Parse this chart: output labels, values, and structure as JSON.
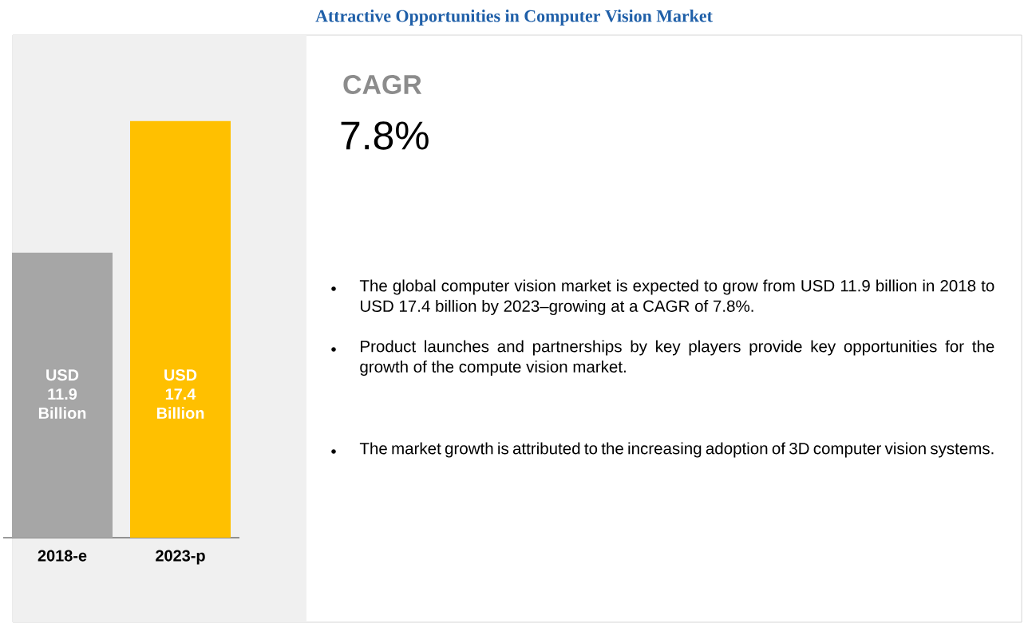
{
  "chart_data": {
    "type": "bar",
    "title": "Attractive Opportunities in Computer Vision Market",
    "categories": [
      "2018-e",
      "2023-p"
    ],
    "values": [
      11.9,
      17.4
    ],
    "colors": [
      "#a6a6a6",
      "#ffc000"
    ],
    "value_labels": [
      "USD 11.9 Billion",
      "USD 17.4 Billion"
    ],
    "tick_labels": "x",
    "annotations": [
      "CAGR",
      "7.8%",
      "The global computer vision market is expected to grow from USD 11.9 billion in 2018 to USD 17.4 billion by 2023–growing at a CAGR of 7.8%.",
      "Product launches and partnerships by key players provide key opportunities for the growth of the compute vision market.",
      "The market growth is attributed to the increasing adoption of 3D computer vision systems."
    ]
  }
}
